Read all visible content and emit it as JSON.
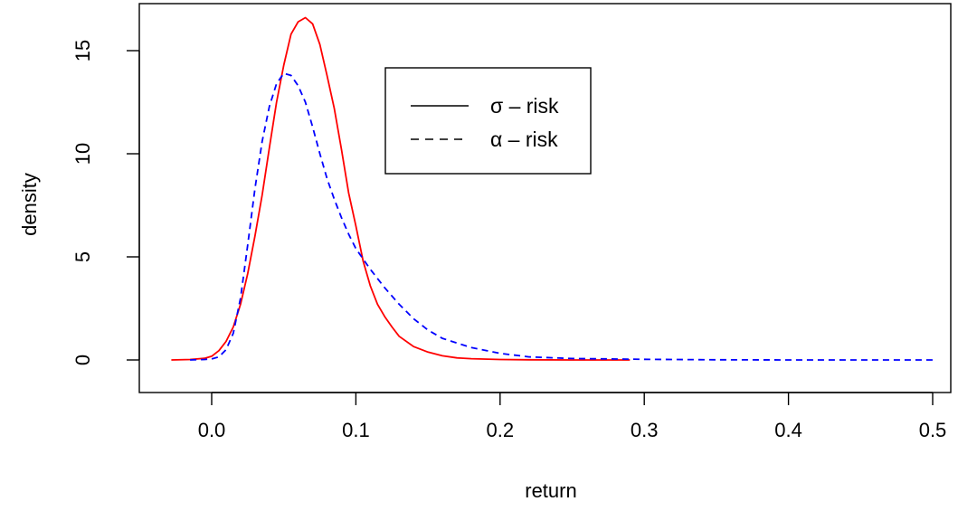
{
  "chart_data": {
    "type": "line",
    "title": "",
    "xlabel": "return",
    "ylabel": "density",
    "xlim": [
      -0.03,
      0.5
    ],
    "ylim": [
      0,
      17
    ],
    "xticks": [
      0.0,
      0.1,
      0.2,
      0.3,
      0.4,
      0.5
    ],
    "xtick_labels": [
      "0.0",
      "0.1",
      "0.2",
      "0.3",
      "0.4",
      "0.5"
    ],
    "yticks": [
      0,
      5,
      10,
      15
    ],
    "ytick_labels": [
      "0",
      "5",
      "10",
      "15"
    ],
    "grid": false,
    "legend_position": "top-center",
    "series": [
      {
        "name": "σ – risk",
        "color": "#ff0000",
        "line_style": "solid",
        "x": [
          -0.028,
          -0.015,
          -0.005,
          0.0,
          0.005,
          0.01,
          0.015,
          0.02,
          0.025,
          0.03,
          0.035,
          0.04,
          0.045,
          0.05,
          0.055,
          0.06,
          0.065,
          0.07,
          0.075,
          0.08,
          0.085,
          0.09,
          0.095,
          0.1,
          0.105,
          0.11,
          0.115,
          0.12,
          0.125,
          0.13,
          0.14,
          0.15,
          0.16,
          0.17,
          0.18,
          0.2,
          0.22,
          0.25,
          0.29
        ],
        "y": [
          0.0,
          0.02,
          0.08,
          0.18,
          0.45,
          0.9,
          1.6,
          2.7,
          4.2,
          6.0,
          8.0,
          10.3,
          12.5,
          14.3,
          15.8,
          16.4,
          16.6,
          16.3,
          15.3,
          13.8,
          12.2,
          10.2,
          8.1,
          6.5,
          4.8,
          3.6,
          2.7,
          2.1,
          1.6,
          1.15,
          0.65,
          0.38,
          0.2,
          0.1,
          0.06,
          0.02,
          0.01,
          0.0,
          0.0
        ]
      },
      {
        "name": "α – risk",
        "color": "#0000ff",
        "line_style": "dashed",
        "x": [
          -0.015,
          -0.005,
          0.0,
          0.005,
          0.01,
          0.015,
          0.02,
          0.025,
          0.03,
          0.035,
          0.04,
          0.045,
          0.05,
          0.055,
          0.06,
          0.065,
          0.07,
          0.075,
          0.08,
          0.085,
          0.09,
          0.095,
          0.1,
          0.11,
          0.12,
          0.13,
          0.14,
          0.15,
          0.16,
          0.18,
          0.2,
          0.22,
          0.25,
          0.3,
          0.35,
          0.4,
          0.45,
          0.5
        ],
        "y": [
          0.0,
          0.02,
          0.05,
          0.15,
          0.5,
          1.3,
          3.0,
          5.6,
          8.3,
          10.6,
          12.3,
          13.4,
          13.9,
          13.8,
          13.3,
          12.5,
          11.3,
          10.0,
          8.8,
          7.8,
          6.9,
          6.1,
          5.4,
          4.4,
          3.5,
          2.7,
          2.0,
          1.45,
          1.05,
          0.6,
          0.32,
          0.15,
          0.07,
          0.03,
          0.01,
          0.0,
          0.0,
          0.0
        ]
      }
    ]
  }
}
